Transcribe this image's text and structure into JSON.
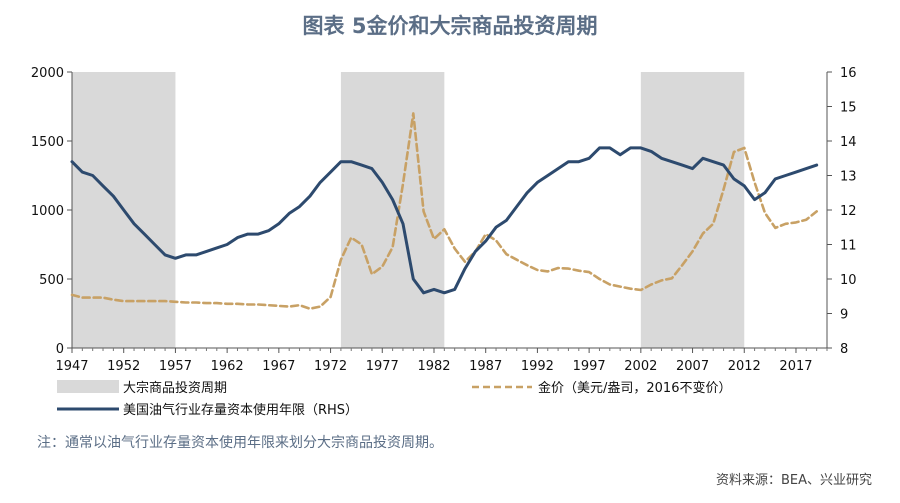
{
  "title": "图表 5金价和大宗商品投资周期",
  "note": "注：通常以油气行业存量资本使用年限来划分大宗商品投资周期。",
  "source": "资料来源：BEA、兴业研究",
  "colors": {
    "shade": "#d9d9d9",
    "gold": "#c8a165",
    "capital": "#2d4a6e"
  },
  "chart_data": {
    "type": "line",
    "xlim": [
      1947,
      2020
    ],
    "x_ticks": [
      "1947",
      "1952",
      "1957",
      "1962",
      "1967",
      "1972",
      "1977",
      "1982",
      "1987",
      "1992",
      "1997",
      "2002",
      "2007",
      "2012",
      "2017"
    ],
    "y_left": {
      "range": [
        0,
        2000
      ],
      "ticks": [
        "0",
        "500",
        "1000",
        "1500",
        "2000"
      ]
    },
    "y_right": {
      "range": [
        8,
        16
      ],
      "ticks": [
        "8",
        "9",
        "10",
        "11",
        "12",
        "13",
        "14",
        "15",
        "16"
      ]
    },
    "shaded_periods": [
      {
        "start": 1947,
        "end": 1957
      },
      {
        "start": 1973,
        "end": 1983
      },
      {
        "start": 2002,
        "end": 2012
      }
    ],
    "series": [
      {
        "name": "金价（美元/盎司，2016不变价）",
        "axis": "left",
        "style": "dashed",
        "x": [
          1947,
          1948,
          1949,
          1950,
          1951,
          1952,
          1953,
          1954,
          1955,
          1956,
          1957,
          1958,
          1959,
          1960,
          1961,
          1962,
          1963,
          1964,
          1965,
          1966,
          1967,
          1968,
          1969,
          1970,
          1971,
          1972,
          1973,
          1974,
          1975,
          1976,
          1977,
          1978,
          1979,
          1980,
          1981,
          1982,
          1983,
          1984,
          1985,
          1986,
          1987,
          1988,
          1989,
          1990,
          1991,
          1992,
          1993,
          1994,
          1995,
          1996,
          1997,
          1998,
          1999,
          2000,
          2001,
          2002,
          2003,
          2004,
          2005,
          2006,
          2007,
          2008,
          2009,
          2010,
          2011,
          2012,
          2013,
          2014,
          2015,
          2016,
          2017,
          2018,
          2019
        ],
        "values": [
          385,
          365,
          365,
          365,
          350,
          340,
          340,
          340,
          340,
          340,
          335,
          330,
          330,
          325,
          325,
          320,
          320,
          315,
          315,
          310,
          305,
          300,
          310,
          285,
          300,
          370,
          640,
          800,
          750,
          535,
          590,
          730,
          1190,
          1700,
          990,
          790,
          860,
          720,
          625,
          700,
          825,
          780,
          680,
          640,
          600,
          565,
          555,
          580,
          575,
          560,
          550,
          500,
          460,
          445,
          430,
          420,
          460,
          490,
          505,
          600,
          700,
          830,
          900,
          1150,
          1420,
          1450,
          1200,
          980,
          870,
          900,
          910,
          930,
          990
        ]
      },
      {
        "name": "美国油气行业存量资本使用年限（RHS）",
        "axis": "right",
        "style": "solid",
        "x": [
          1947,
          1948,
          1949,
          1950,
          1951,
          1952,
          1953,
          1954,
          1955,
          1956,
          1957,
          1958,
          1959,
          1960,
          1961,
          1962,
          1963,
          1964,
          1965,
          1966,
          1967,
          1968,
          1969,
          1970,
          1971,
          1972,
          1973,
          1974,
          1975,
          1976,
          1977,
          1978,
          1979,
          1980,
          1981,
          1982,
          1983,
          1984,
          1985,
          1986,
          1987,
          1988,
          1989,
          1990,
          1991,
          1992,
          1993,
          1994,
          1995,
          1996,
          1997,
          1998,
          1999,
          2000,
          2001,
          2002,
          2003,
          2004,
          2005,
          2006,
          2007,
          2008,
          2009,
          2010,
          2011,
          2012,
          2013,
          2014,
          2015,
          2016,
          2017,
          2018,
          2019
        ],
        "values": [
          13.4,
          13.1,
          13.0,
          12.7,
          12.4,
          12.0,
          11.6,
          11.3,
          11.0,
          10.7,
          10.6,
          10.7,
          10.7,
          10.8,
          10.9,
          11.0,
          11.2,
          11.3,
          11.3,
          11.4,
          11.6,
          11.9,
          12.1,
          12.4,
          12.8,
          13.1,
          13.4,
          13.4,
          13.3,
          13.2,
          12.8,
          12.3,
          11.6,
          10.0,
          9.6,
          9.7,
          9.6,
          9.7,
          10.3,
          10.8,
          11.1,
          11.5,
          11.7,
          12.1,
          12.5,
          12.8,
          13.0,
          13.2,
          13.4,
          13.4,
          13.5,
          13.8,
          13.8,
          13.6,
          13.8,
          13.8,
          13.7,
          13.5,
          13.4,
          13.3,
          13.2,
          13.5,
          13.4,
          13.3,
          12.9,
          12.7,
          12.3,
          12.5,
          12.9,
          13.0,
          13.1,
          13.2,
          13.3
        ]
      }
    ],
    "legend": [
      {
        "label": "大宗商品投资周期",
        "kind": "shade"
      },
      {
        "label": "金价（美元/盎司，2016不变价）",
        "kind": "dashed"
      },
      {
        "label": "美国油气行业存量资本使用年限（RHS）",
        "kind": "solid"
      }
    ],
    "grid": false,
    "legend_position": "bottom"
  }
}
